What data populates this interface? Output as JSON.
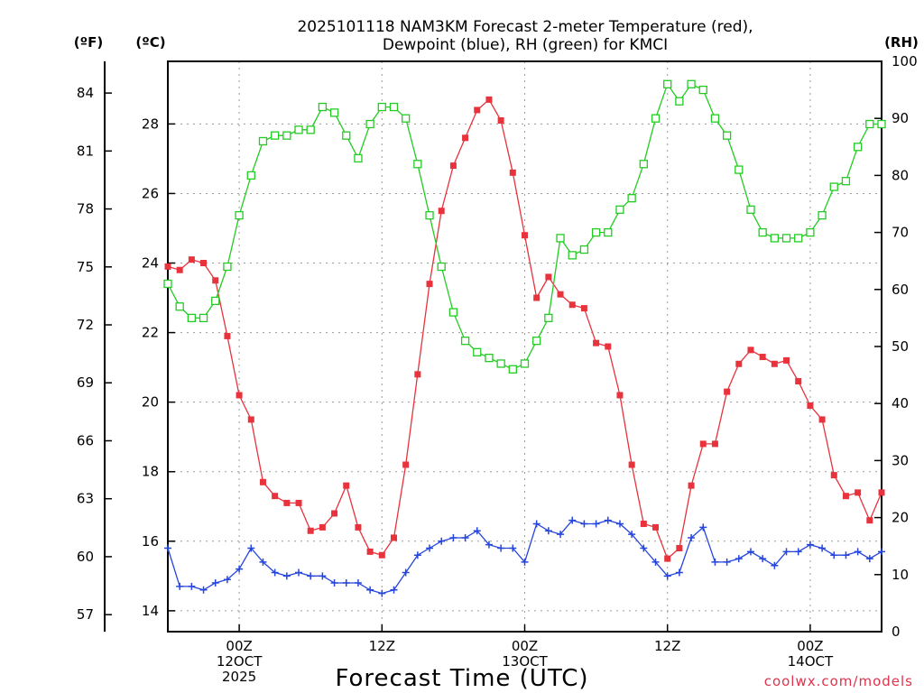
{
  "chart_data": {
    "type": "line",
    "title": [
      "2025101118 NAM3KM Forecast 2-meter Temperature (red),",
      "Dewpoint (blue), RH (green) for KMCI"
    ],
    "xlabel": "Forecast Time (UTC)",
    "credit": "coolwx.com/models",
    "units": {
      "fahrenheit": "(ºF)",
      "celsius": "(ºC)",
      "rh": "(RH)"
    },
    "x_range_hours": [
      18,
      78
    ],
    "y_celsius_range": [
      13.4,
      29.8
    ],
    "rh_range": [
      0,
      100
    ],
    "fahrenheit_ticks": [
      57,
      60,
      63,
      66,
      69,
      72,
      75,
      78,
      81,
      84
    ],
    "celsius_ticks": [
      14,
      16,
      18,
      20,
      22,
      24,
      26,
      28
    ],
    "rh_ticks": [
      0,
      10,
      20,
      30,
      40,
      50,
      60,
      70,
      80,
      90,
      100
    ],
    "x_ticks": [
      {
        "hour": 24,
        "lines": [
          "00Z",
          "12OCT",
          "2025"
        ]
      },
      {
        "hour": 36,
        "lines": [
          "12Z"
        ]
      },
      {
        "hour": 48,
        "lines": [
          "00Z",
          "13OCT"
        ]
      },
      {
        "hour": 60,
        "lines": [
          "12Z"
        ]
      },
      {
        "hour": 72,
        "lines": [
          "00Z",
          "14OCT"
        ]
      }
    ],
    "series": [
      {
        "name": "Temperature",
        "color": "#e8323c",
        "marker": "filled-square",
        "x": [
          18,
          19,
          20,
          21,
          22,
          23,
          24,
          25,
          26,
          27,
          28,
          29,
          30,
          31,
          32,
          33,
          34,
          35,
          36,
          37,
          38,
          39,
          40,
          41,
          42,
          43,
          44,
          45,
          46,
          47,
          48,
          49,
          50,
          51,
          52,
          53,
          54,
          55,
          56,
          57,
          58,
          59,
          60,
          61,
          62,
          63,
          64,
          65,
          66,
          67,
          68,
          69,
          70,
          71,
          72,
          73,
          74,
          75,
          76,
          77,
          78
        ],
        "values": [
          23.9,
          23.8,
          24.1,
          24.0,
          23.5,
          21.9,
          20.2,
          19.5,
          17.7,
          17.3,
          17.1,
          17.1,
          16.3,
          16.4,
          16.8,
          17.6,
          16.4,
          15.7,
          15.6,
          16.1,
          18.2,
          20.8,
          23.4,
          25.5,
          26.8,
          27.6,
          28.4,
          28.7,
          28.1,
          26.6,
          24.8,
          23.0,
          23.6,
          23.1,
          22.8,
          22.7,
          21.7,
          21.6,
          20.2,
          18.2,
          16.5,
          16.4,
          15.5,
          15.8,
          17.6,
          18.8,
          18.8,
          20.3,
          21.1,
          21.5,
          21.3,
          21.1,
          21.2,
          20.6,
          19.9,
          19.5,
          17.9,
          17.3,
          17.4,
          16.6,
          17.4
        ]
      },
      {
        "name": "Dewpoint",
        "color": "#2545dd",
        "marker": "plus",
        "x": [
          18,
          19,
          20,
          21,
          22,
          23,
          24,
          25,
          26,
          27,
          28,
          29,
          30,
          31,
          32,
          33,
          34,
          35,
          36,
          37,
          38,
          39,
          40,
          41,
          42,
          43,
          44,
          45,
          46,
          47,
          48,
          49,
          50,
          51,
          52,
          53,
          54,
          55,
          56,
          57,
          58,
          59,
          60,
          61,
          62,
          63,
          64,
          65,
          66,
          67,
          68,
          69,
          70,
          71,
          72,
          73,
          74,
          75,
          76,
          77,
          78
        ],
        "values": [
          15.8,
          14.7,
          14.7,
          14.6,
          14.8,
          14.9,
          15.2,
          15.8,
          15.4,
          15.1,
          15.0,
          15.1,
          15.0,
          15.0,
          14.8,
          14.8,
          14.8,
          14.6,
          14.5,
          14.6,
          15.1,
          15.6,
          15.8,
          16.0,
          16.1,
          16.1,
          16.3,
          15.9,
          15.8,
          15.8,
          15.4,
          16.5,
          16.3,
          16.2,
          16.6,
          16.5,
          16.5,
          16.6,
          16.5,
          16.2,
          15.8,
          15.4,
          15.0,
          15.1,
          16.1,
          16.4,
          15.4,
          15.4,
          15.5,
          15.7,
          15.5,
          15.3,
          15.7,
          15.7,
          15.9,
          15.8,
          15.6,
          15.6,
          15.7,
          15.5,
          15.7
        ]
      },
      {
        "name": "RH",
        "color": "#22cc22",
        "marker": "open-square",
        "x": [
          18,
          19,
          20,
          21,
          22,
          23,
          24,
          25,
          26,
          27,
          28,
          29,
          30,
          31,
          32,
          33,
          34,
          35,
          36,
          37,
          38,
          39,
          40,
          41,
          42,
          43,
          44,
          45,
          46,
          47,
          48,
          49,
          50,
          51,
          52,
          53,
          54,
          55,
          56,
          57,
          58,
          59,
          60,
          61,
          62,
          63,
          64,
          65,
          66,
          67,
          68,
          69,
          70,
          71,
          72,
          73,
          74,
          75,
          76,
          77,
          78
        ],
        "values": [
          61,
          57,
          55,
          55,
          58,
          64,
          73,
          80,
          86,
          87,
          87,
          88,
          88,
          92,
          91,
          87,
          83,
          89,
          92,
          92,
          90,
          82,
          73,
          64,
          56,
          51,
          49,
          48,
          47,
          46,
          47,
          51,
          55,
          69,
          66,
          67,
          70,
          70,
          74,
          76,
          82,
          90,
          96,
          93,
          96,
          95,
          90,
          87,
          81,
          74,
          70,
          69,
          69,
          69,
          70,
          73,
          78,
          79,
          85,
          89,
          89
        ]
      }
    ]
  }
}
